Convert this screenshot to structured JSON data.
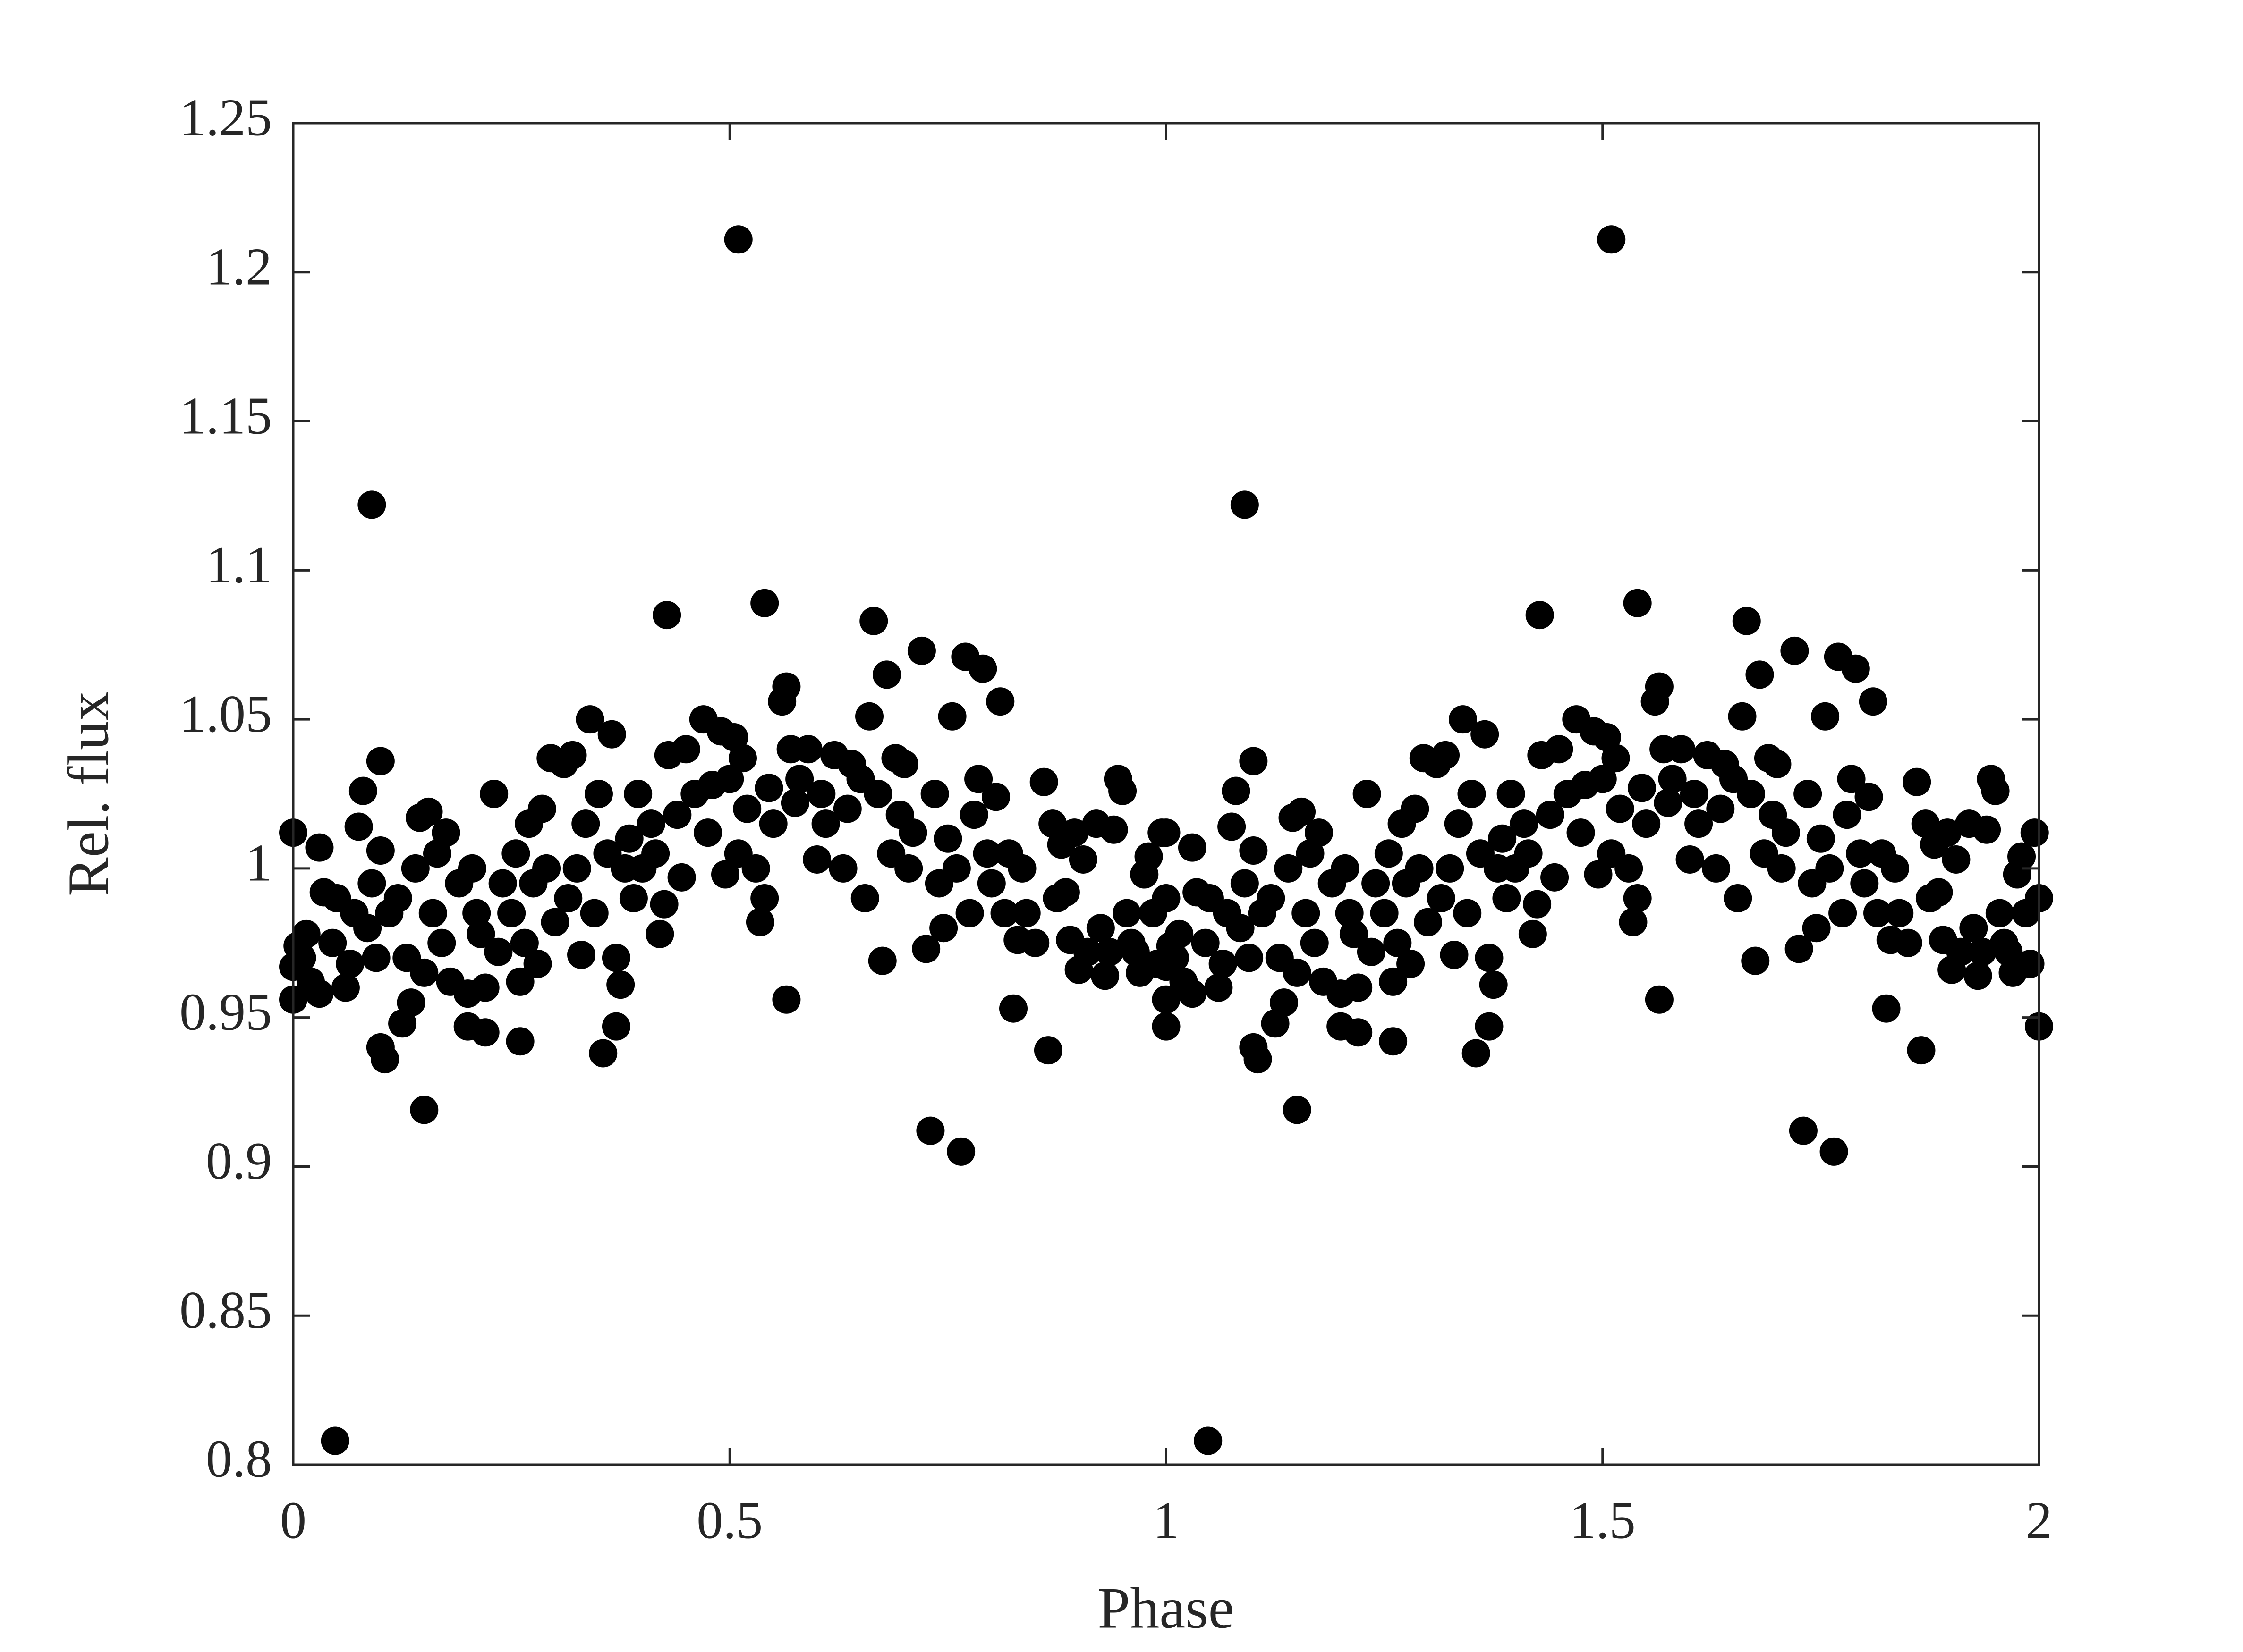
{
  "chart_data": {
    "type": "scatter",
    "xlabel": "Phase",
    "ylabel": "Rel. flux",
    "color": "#000000",
    "xlim": [
      0,
      2
    ],
    "ylim": [
      0.8,
      1.25
    ],
    "xticks": [
      0,
      0.5,
      1,
      1.5,
      2
    ],
    "yticks": [
      0.8,
      0.85,
      0.9,
      0.95,
      1,
      1.05,
      1.1,
      1.15,
      1.2,
      1.25
    ],
    "x": [
      0,
      0,
      0,
      0.005,
      0.01,
      0.015,
      0.02,
      0.03,
      0.03,
      0.035,
      0.045,
      0.048,
      0.05,
      0.06,
      0.065,
      0.07,
      0.075,
      0.08,
      0.085,
      0.09,
      0.09,
      0.095,
      0.1,
      0.1,
      0.1,
      0.105,
      0.11,
      0.12,
      0.125,
      0.13,
      0.135,
      0.14,
      0.145,
      0.15,
      0.15,
      0.155,
      0.16,
      0.165,
      0.17,
      0.175,
      0.18,
      0.19,
      0.2,
      0.2,
      0.205,
      0.21,
      0.215,
      0.22,
      0.22,
      0.23,
      0.235,
      0.24,
      0.25,
      0.255,
      0.26,
      0.26,
      0.265,
      0.27,
      0.275,
      0.28,
      0.285,
      0.29,
      0.295,
      0.3,
      0.31,
      0.315,
      0.32,
      0.325,
      0.33,
      0.335,
      0.34,
      0.345,
      0.35,
      0.355,
      0.36,
      0.365,
      0.37,
      0.37,
      0.375,
      0.38,
      0.385,
      0.39,
      0.395,
      0.4,
      0.41,
      0.415,
      0.42,
      0.425,
      0.428,
      0.43,
      0.44,
      0.445,
      0.45,
      0.46,
      0.47,
      0.475,
      0.48,
      0.49,
      0.495,
      0.5,
      0.505,
      0.51,
      0.51,
      0.515,
      0.52,
      0.53,
      0.535,
      0.54,
      0.54,
      0.545,
      0.55,
      0.56,
      0.565,
      0.565,
      0.57,
      0.575,
      0.58,
      0.59,
      0.6,
      0.605,
      0.61,
      0.62,
      0.63,
      0.635,
      0.64,
      0.65,
      0.655,
      0.66,
      0.665,
      0.67,
      0.675,
      0.68,
      0.685,
      0.69,
      0.695,
      0.7,
      0.705,
      0.71,
      0.72,
      0.725,
      0.73,
      0.735,
      0.74,
      0.745,
      0.75,
      0.755,
      0.76,
      0.765,
      0.77,
      0.775,
      0.78,
      0.785,
      0.79,
      0.795,
      0.8,
      0.805,
      0.81,
      0.815,
      0.82,
      0.825,
      0.83,
      0.835,
      0.84,
      0.85,
      0.86,
      0.865,
      0.87,
      0.875,
      0.88,
      0.885,
      0.89,
      0.895,
      0.9,
      0.905,
      0.91,
      0.92,
      0.925,
      0.93,
      0.935,
      0.94,
      0.945,
      0.95,
      0.955,
      0.96,
      0.965,
      0.97,
      0.975,
      0.98,
      0.985,
      0.99,
      0.995,
      1,
      1,
      1,
      1,
      1,
      1.005,
      1.01,
      1.015,
      1.02,
      1.03,
      1.03,
      1.035,
      1.045,
      1.048,
      1.05,
      1.06,
      1.065,
      1.07,
      1.075,
      1.08,
      1.085,
      1.09,
      1.09,
      1.095,
      1.1,
      1.1,
      1.1,
      1.105,
      1.11,
      1.12,
      1.125,
      1.13,
      1.135,
      1.14,
      1.145,
      1.15,
      1.15,
      1.155,
      1.16,
      1.165,
      1.17,
      1.175,
      1.18,
      1.19,
      1.2,
      1.2,
      1.205,
      1.21,
      1.215,
      1.22,
      1.22,
      1.23,
      1.235,
      1.24,
      1.25,
      1.255,
      1.26,
      1.26,
      1.265,
      1.27,
      1.275,
      1.28,
      1.285,
      1.29,
      1.295,
      1.3,
      1.31,
      1.315,
      1.32,
      1.325,
      1.33,
      1.335,
      1.34,
      1.345,
      1.35,
      1.355,
      1.36,
      1.365,
      1.37,
      1.37,
      1.375,
      1.38,
      1.385,
      1.39,
      1.395,
      1.4,
      1.41,
      1.415,
      1.42,
      1.425,
      1.428,
      1.43,
      1.44,
      1.445,
      1.45,
      1.46,
      1.47,
      1.475,
      1.48,
      1.49,
      1.495,
      1.5,
      1.505,
      1.51,
      1.51,
      1.515,
      1.52,
      1.53,
      1.535,
      1.54,
      1.54,
      1.545,
      1.55,
      1.56,
      1.565,
      1.565,
      1.57,
      1.575,
      1.58,
      1.59,
      1.6,
      1.605,
      1.61,
      1.62,
      1.63,
      1.635,
      1.64,
      1.65,
      1.655,
      1.66,
      1.665,
      1.67,
      1.675,
      1.68,
      1.685,
      1.69,
      1.695,
      1.7,
      1.705,
      1.71,
      1.72,
      1.725,
      1.73,
      1.735,
      1.74,
      1.745,
      1.75,
      1.755,
      1.76,
      1.765,
      1.77,
      1.775,
      1.78,
      1.785,
      1.79,
      1.795,
      1.8,
      1.805,
      1.81,
      1.815,
      1.82,
      1.825,
      1.83,
      1.835,
      1.84,
      1.85,
      1.86,
      1.865,
      1.87,
      1.875,
      1.88,
      1.885,
      1.89,
      1.895,
      1.9,
      1.905,
      1.91,
      1.92,
      1.925,
      1.93,
      1.935,
      1.94,
      1.945,
      1.95,
      1.955,
      1.96,
      1.965,
      1.97,
      1.975,
      1.98,
      1.985,
      1.99,
      1.995,
      2,
      2
    ],
    "values": [
      1.012,
      0.956,
      0.967,
      0.974,
      0.97,
      0.978,
      0.962,
      1.007,
      0.958,
      0.992,
      0.975,
      0.808,
      0.99,
      0.96,
      0.968,
      0.985,
      1.014,
      1.026,
      0.98,
      1.122,
      0.995,
      0.97,
      1.036,
      1.006,
      0.94,
      0.936,
      0.985,
      0.99,
      0.948,
      0.97,
      0.955,
      1.0,
      1.017,
      0.919,
      0.965,
      1.019,
      0.985,
      1.005,
      0.975,
      1.012,
      0.962,
      0.995,
      0.947,
      0.958,
      1.0,
      0.985,
      0.978,
      0.945,
      0.96,
      1.025,
      0.972,
      0.995,
      0.985,
      1.005,
      0.942,
      0.962,
      0.975,
      1.015,
      0.995,
      0.968,
      1.02,
      1.0,
      1.037,
      0.982,
      1.035,
      0.99,
      1.038,
      1.0,
      0.971,
      1.015,
      1.05,
      0.985,
      1.025,
      0.938,
      1.005,
      1.045,
      0.97,
      0.947,
      0.961,
      1.0,
      1.01,
      0.99,
      1.025,
      1.0,
      1.015,
      1.005,
      0.978,
      0.988,
      1.085,
      1.038,
      1.018,
      0.997,
      1.04,
      1.025,
      1.05,
      1.012,
      1.028,
      1.046,
      0.998,
      1.03,
      1.044,
      1.211,
      1.005,
      1.037,
      1.02,
      1.0,
      0.982,
      1.089,
      0.99,
      1.027,
      1.015,
      1.056,
      0.956,
      1.061,
      1.04,
      1.022,
      1.03,
      1.04,
      1.003,
      1.025,
      1.015,
      1.038,
      1.0,
      1.02,
      1.035,
      1.03,
      0.99,
      1.051,
      1.083,
      1.025,
      0.969,
      1.065,
      1.005,
      1.037,
      1.018,
      1.035,
      1.0,
      1.012,
      1.073,
      0.973,
      0.912,
      1.025,
      0.995,
      0.98,
      1.01,
      1.051,
      1.0,
      0.905,
      1.071,
      0.985,
      1.018,
      1.03,
      1.067,
      1.005,
      0.995,
      1.024,
      1.056,
      0.985,
      1.005,
      0.953,
      0.976,
      1.0,
      0.985,
      0.975,
      1.029,
      0.939,
      1.015,
      0.99,
      1.008,
      0.992,
      0.976,
      1.012,
      0.966,
      1.003,
      0.972,
      1.015,
      0.98,
      0.964,
      0.972,
      1.013,
      1.03,
      1.026,
      0.985,
      0.975,
      0.972,
      0.965,
      0.998,
      1.004,
      0.985,
      0.968,
      1.012,
      0.947,
      0.99,
      1.012,
      0.956,
      0.967,
      0.974,
      0.97,
      0.978,
      0.962,
      1.007,
      0.958,
      0.992,
      0.975,
      0.808,
      0.99,
      0.96,
      0.968,
      0.985,
      1.014,
      1.026,
      0.98,
      1.122,
      0.995,
      0.97,
      1.036,
      1.006,
      0.94,
      0.936,
      0.985,
      0.99,
      0.948,
      0.97,
      0.955,
      1.0,
      1.017,
      0.919,
      0.965,
      1.019,
      0.985,
      1.005,
      0.975,
      1.012,
      0.962,
      0.995,
      0.947,
      0.958,
      1.0,
      0.985,
      0.978,
      0.945,
      0.96,
      1.025,
      0.972,
      0.995,
      0.985,
      1.005,
      0.942,
      0.962,
      0.975,
      1.015,
      0.995,
      0.968,
      1.02,
      1.0,
      1.037,
      0.982,
      1.035,
      0.99,
      1.038,
      1.0,
      0.971,
      1.015,
      1.05,
      0.985,
      1.025,
      0.938,
      1.005,
      1.045,
      0.97,
      0.947,
      0.961,
      1.0,
      1.01,
      0.99,
      1.025,
      1.0,
      1.015,
      1.005,
      0.978,
      0.988,
      1.085,
      1.038,
      1.018,
      0.997,
      1.04,
      1.025,
      1.05,
      1.012,
      1.028,
      1.046,
      0.998,
      1.03,
      1.044,
      1.211,
      1.005,
      1.037,
      1.02,
      1.0,
      0.982,
      1.089,
      0.99,
      1.027,
      1.015,
      1.056,
      0.956,
      1.061,
      1.04,
      1.022,
      1.03,
      1.04,
      1.003,
      1.025,
      1.015,
      1.038,
      1.0,
      1.02,
      1.035,
      1.03,
      0.99,
      1.051,
      1.083,
      1.025,
      0.969,
      1.065,
      1.005,
      1.037,
      1.018,
      1.035,
      1.0,
      1.012,
      1.073,
      0.973,
      0.912,
      1.025,
      0.995,
      0.98,
      1.01,
      1.051,
      1.0,
      0.905,
      1.071,
      0.985,
      1.018,
      1.03,
      1.067,
      1.005,
      0.995,
      1.024,
      1.056,
      0.985,
      1.005,
      0.953,
      0.976,
      1.0,
      0.985,
      0.975,
      1.029,
      0.939,
      1.015,
      0.99,
      1.008,
      0.992,
      0.976,
      1.012,
      0.966,
      1.003,
      0.972,
      1.015,
      0.98,
      0.964,
      0.972,
      1.013,
      1.03,
      1.026,
      0.985,
      0.975,
      0.972,
      0.965,
      0.998,
      1.004,
      0.985,
      0.968,
      1.012,
      0.947,
      0.99
    ]
  }
}
